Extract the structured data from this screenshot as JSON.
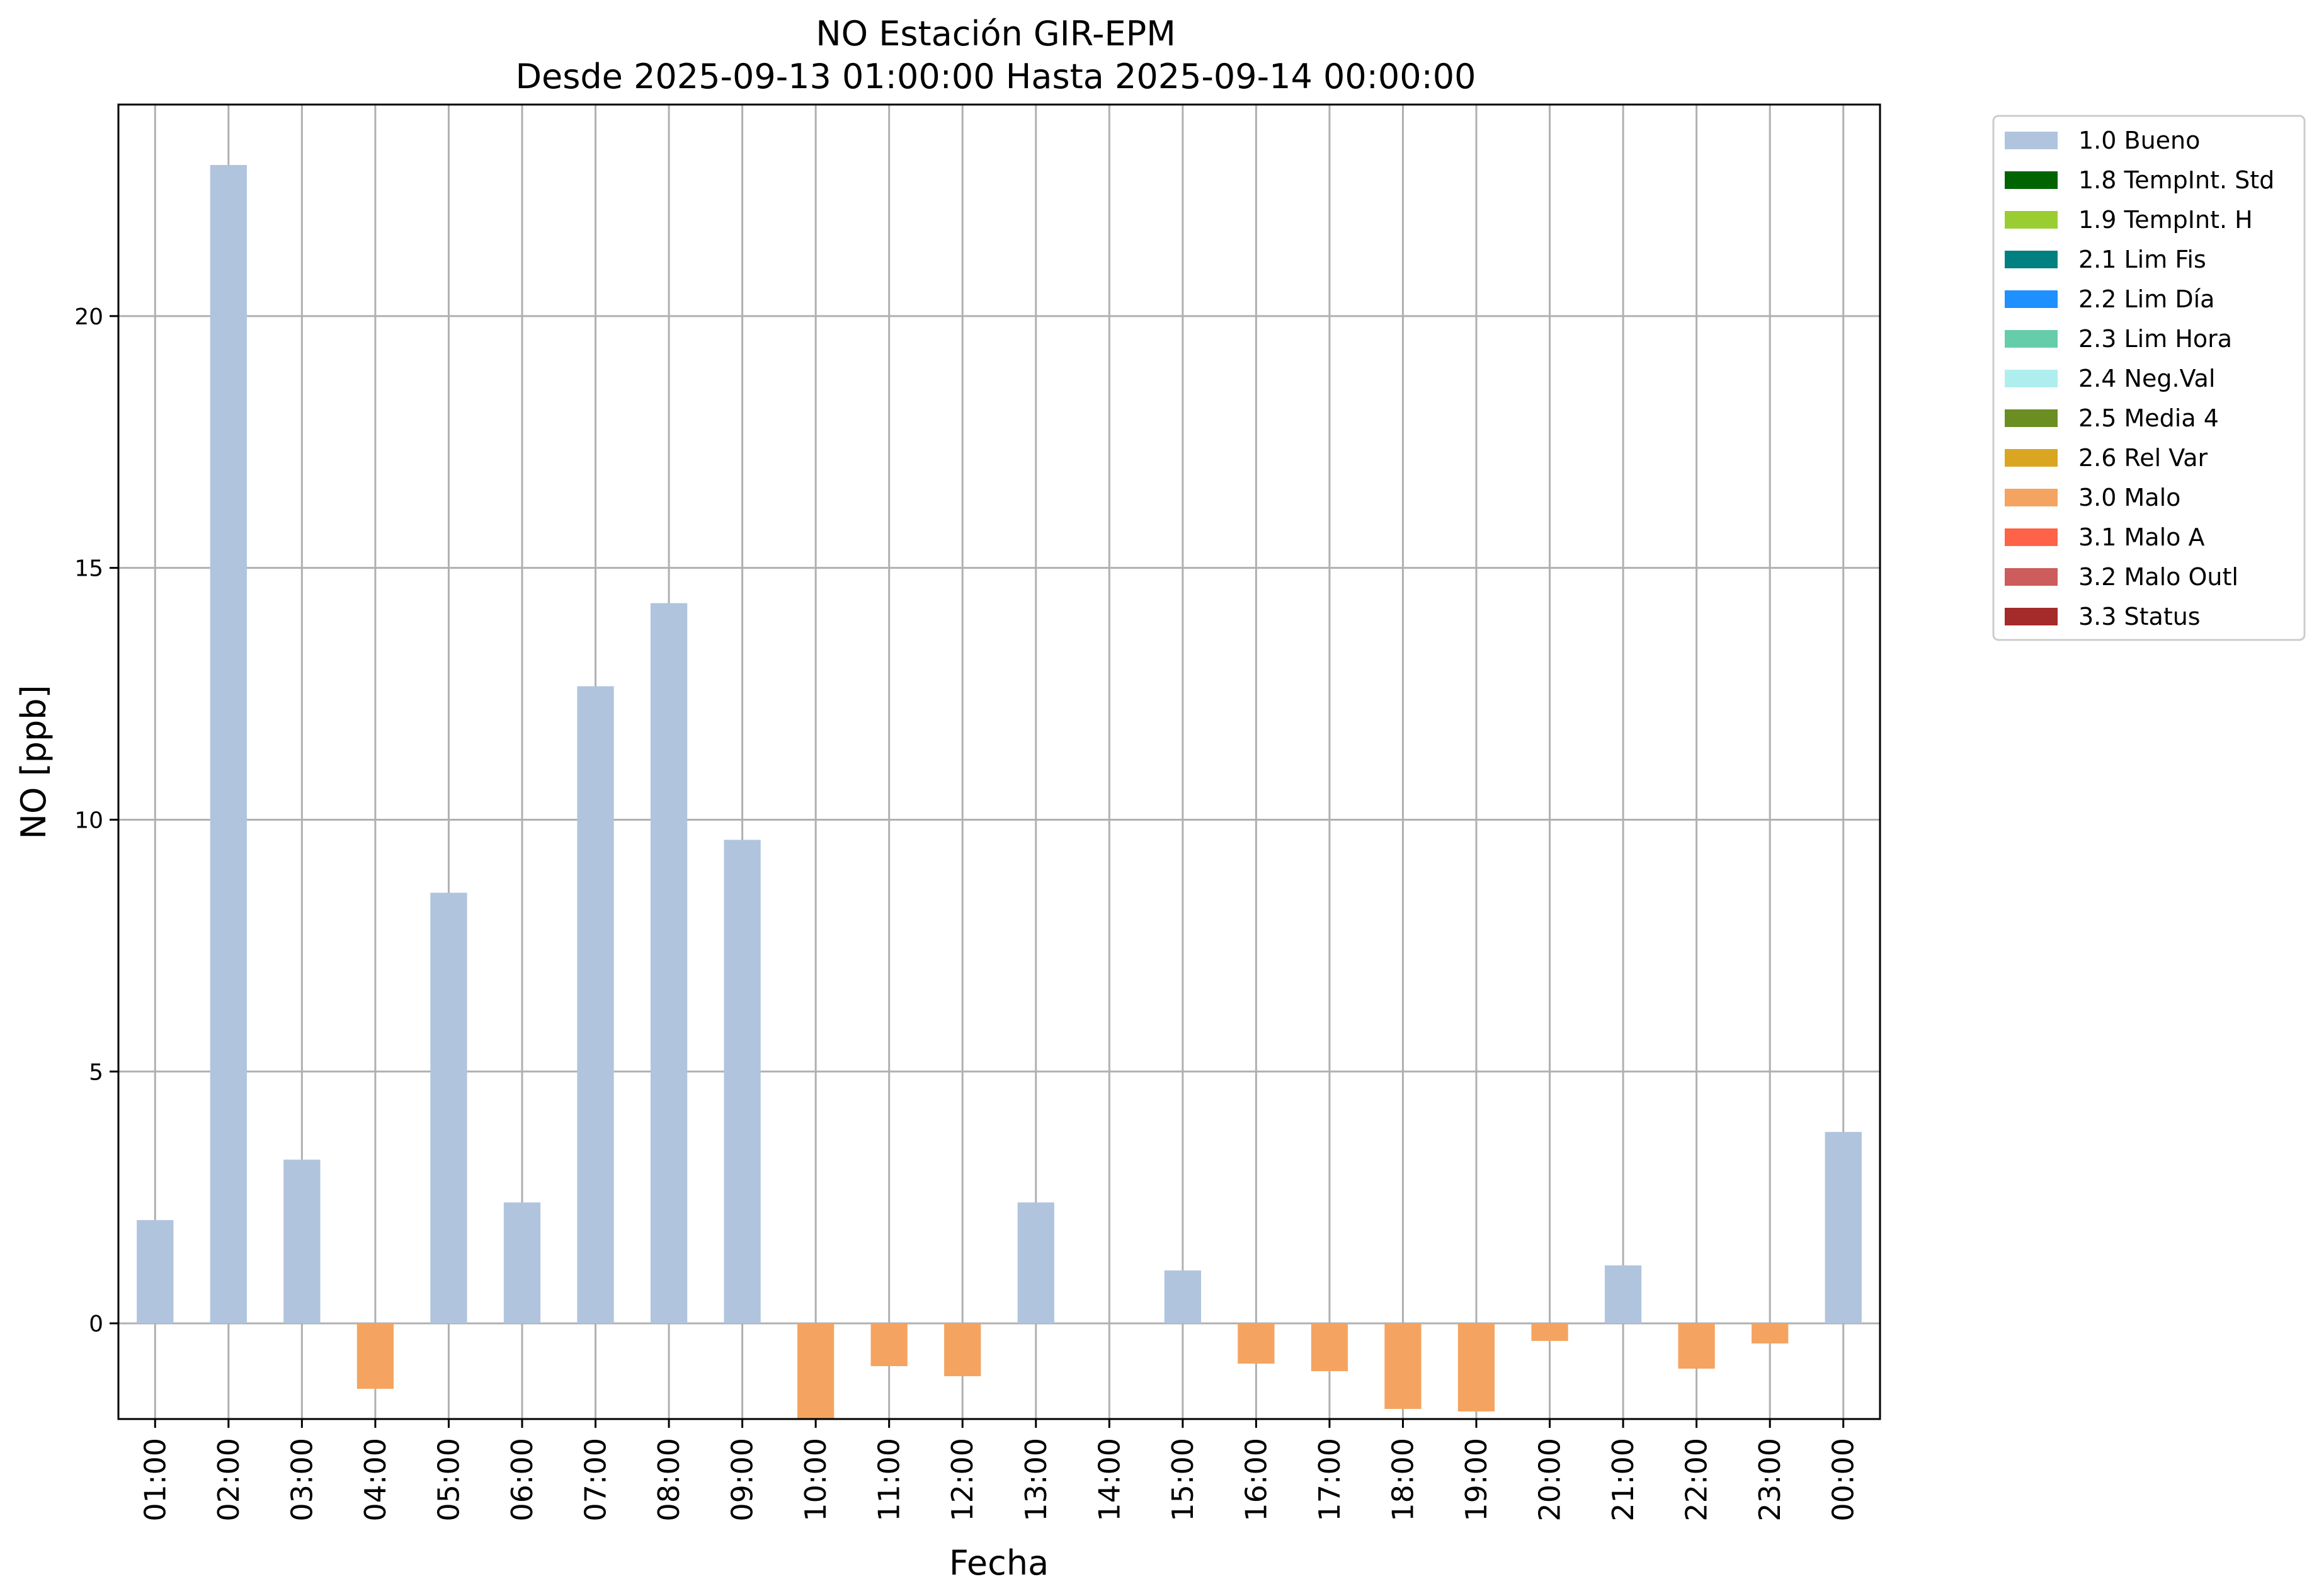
{
  "chart_data": {
    "type": "bar",
    "title": "NO Estación GIR-EPM",
    "subtitle": "Desde 2025-09-13 01:00:00 Hasta 2025-09-14 00:00:00",
    "xlabel": "Fecha",
    "ylabel": "NO [ppb]",
    "ylim": [
      -1.9,
      24.2
    ],
    "yticks": [
      0,
      5,
      10,
      15,
      20
    ],
    "grid": true,
    "legend_position": "outside-top-right",
    "categories": [
      "01:00",
      "02:00",
      "03:00",
      "04:00",
      "05:00",
      "06:00",
      "07:00",
      "08:00",
      "09:00",
      "10:00",
      "11:00",
      "12:00",
      "13:00",
      "14:00",
      "15:00",
      "16:00",
      "17:00",
      "18:00",
      "19:00",
      "20:00",
      "21:00",
      "22:00",
      "23:00",
      "00:00"
    ],
    "values": [
      2.05,
      23.0,
      3.25,
      -1.3,
      8.55,
      2.4,
      12.65,
      14.3,
      9.6,
      -1.9,
      -0.85,
      -1.05,
      2.4,
      null,
      1.05,
      -0.8,
      -0.95,
      -1.7,
      -1.75,
      -0.35,
      1.15,
      -0.9,
      -0.4,
      3.8
    ],
    "flags": [
      "1.0 Bueno",
      "1.0 Bueno",
      "1.0 Bueno",
      "3.0 Malo",
      "1.0 Bueno",
      "1.0 Bueno",
      "1.0 Bueno",
      "1.0 Bueno",
      "1.0 Bueno",
      "3.0 Malo",
      "3.0 Malo",
      "3.0 Malo",
      "1.0 Bueno",
      null,
      "1.0 Bueno",
      "3.0 Malo",
      "3.0 Malo",
      "3.0 Malo",
      "3.0 Malo",
      "3.0 Malo",
      "1.0 Bueno",
      "3.0 Malo",
      "3.0 Malo",
      "1.0 Bueno"
    ],
    "legend": [
      {
        "label": "1.0 Bueno",
        "color": "#b0c4de"
      },
      {
        "label": "1.8 TempInt. Std",
        "color": "#006400"
      },
      {
        "label": "1.9 TempInt. H",
        "color": "#9acd32"
      },
      {
        "label": "2.1 Lim Fis",
        "color": "#008080"
      },
      {
        "label": "2.2 Lim Día",
        "color": "#1e90ff"
      },
      {
        "label": "2.3 Lim Hora",
        "color": "#66cdaa"
      },
      {
        "label": "2.4 Neg.Val",
        "color": "#afeeee"
      },
      {
        "label": "2.5 Media 4",
        "color": "#6b8e23"
      },
      {
        "label": "2.6 Rel Var",
        "color": "#daa520"
      },
      {
        "label": "3.0 Malo",
        "color": "#f4a460"
      },
      {
        "label": "3.1 Malo A",
        "color": "#ff6347"
      },
      {
        "label": "3.2 Malo Outl",
        "color": "#cd5c5c"
      },
      {
        "label": "3.3 Status",
        "color": "#a52a2a"
      }
    ]
  }
}
